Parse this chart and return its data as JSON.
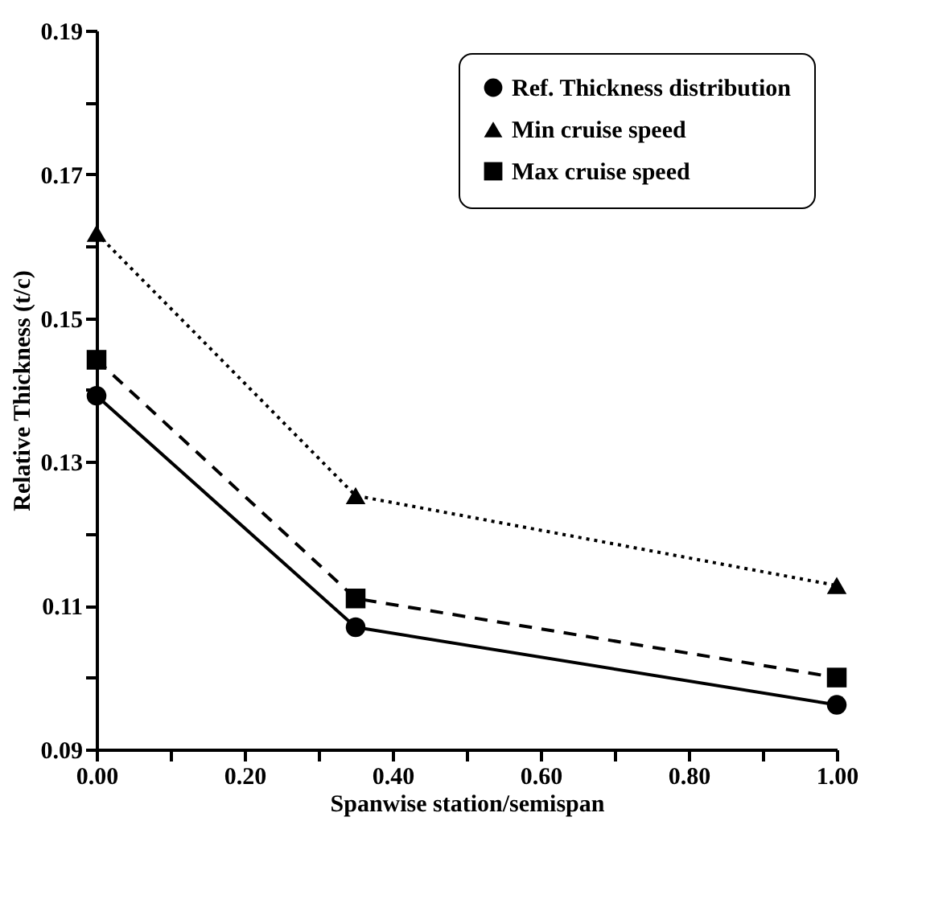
{
  "chart_data": {
    "type": "line",
    "xlabel": "Spanwise station/semispan",
    "ylabel": "Relative Thickness (t/c)",
    "x": [
      0.0,
      0.35,
      1.0
    ],
    "series": [
      {
        "name": "Ref. Thickness distribution",
        "color": "#000000",
        "values": [
          0.1392,
          0.107,
          0.0962
        ],
        "marker": "circle",
        "line_style": "solid"
      },
      {
        "name": "Min cruise speed",
        "color": "#000000",
        "values": [
          0.1618,
          0.1253,
          0.1128
        ],
        "marker": "triangle",
        "line_style": "dotted"
      },
      {
        "name": "Max cruise speed",
        "color": "#000000",
        "values": [
          0.1442,
          0.111,
          0.1
        ],
        "marker": "square",
        "line_style": "dashed"
      }
    ],
    "xlim": [
      0.0,
      1.0
    ],
    "xticks": [
      {
        "value": 0.0,
        "label": "0.00"
      },
      {
        "value": 0.1,
        "label": null
      },
      {
        "value": 0.2,
        "label": "0.20"
      },
      {
        "value": 0.3,
        "label": null
      },
      {
        "value": 0.4,
        "label": "0.40"
      },
      {
        "value": 0.5,
        "label": null
      },
      {
        "value": 0.6,
        "label": "0.60"
      },
      {
        "value": 0.7,
        "label": null
      },
      {
        "value": 0.8,
        "label": "0.80"
      },
      {
        "value": 0.9,
        "label": null
      },
      {
        "value": 1.0,
        "label": "1.00"
      }
    ],
    "ylim": [
      0.09,
      0.19
    ],
    "yticks": [
      0.09,
      {
        "value": 0.1,
        "label": null
      },
      0.11,
      {
        "value": 0.12,
        "label": null
      },
      0.13,
      {
        "value": 0.14,
        "label": null
      },
      0.15,
      {
        "value": 0.16,
        "label": null
      },
      0.17,
      {
        "value": 0.18,
        "label": null
      },
      0.19
    ],
    "grid": false,
    "legend": "top right"
  }
}
